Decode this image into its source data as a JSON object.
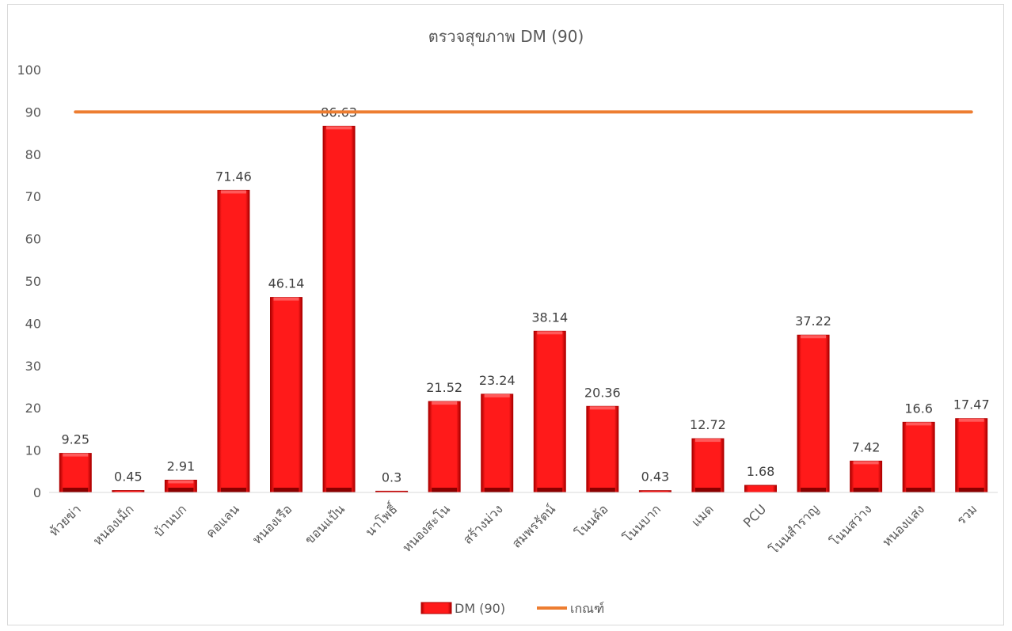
{
  "chart_data": {
    "type": "bar",
    "title": "ตรวจสุขภาพ DM (90)",
    "categories": [
      "ห้วยข่า",
      "หนองเม็ก",
      "บ้านบก",
      "คอแลน",
      "หนองเรือ",
      "ขอนแป้น",
      "นาโพธิ์",
      "หนองสะโน",
      "สร้างม่วง",
      "สมพรรัตน์",
      "โนนค้อ",
      "โนนบาก",
      "แมด",
      "PCU",
      "โนนสำราญ",
      "โนนสว่าง",
      "หนองแสง",
      "รวม"
    ],
    "series": [
      {
        "name": "DM (90)",
        "type": "bar",
        "color": "#e00000",
        "values": [
          9.25,
          0.45,
          2.91,
          71.46,
          46.14,
          86.63,
          0.3,
          21.52,
          23.24,
          38.14,
          20.36,
          0.43,
          12.72,
          1.68,
          37.22,
          7.42,
          16.6,
          17.47
        ]
      },
      {
        "name": "เกณฑ์",
        "type": "line",
        "color": "#ed7d31",
        "values": [
          90,
          90,
          90,
          90,
          90,
          90,
          90,
          90,
          90,
          90,
          90,
          90,
          90,
          90,
          90,
          90,
          90,
          90
        ]
      }
    ],
    "ylim": [
      0,
      100
    ],
    "yticks": [
      0,
      10,
      20,
      30,
      40,
      50,
      60,
      70,
      80,
      90,
      100
    ],
    "data_labels": [
      "9.25",
      "0.45",
      "2.91",
      "71.46",
      "46.14",
      "86.63",
      "0.3",
      "21.52",
      "23.24",
      "38.14",
      "20.36",
      "0.43",
      "12.72",
      "1.68",
      "37.22",
      "7.42",
      "16.6",
      "17.47"
    ],
    "legend": "bottom",
    "grid": false
  }
}
